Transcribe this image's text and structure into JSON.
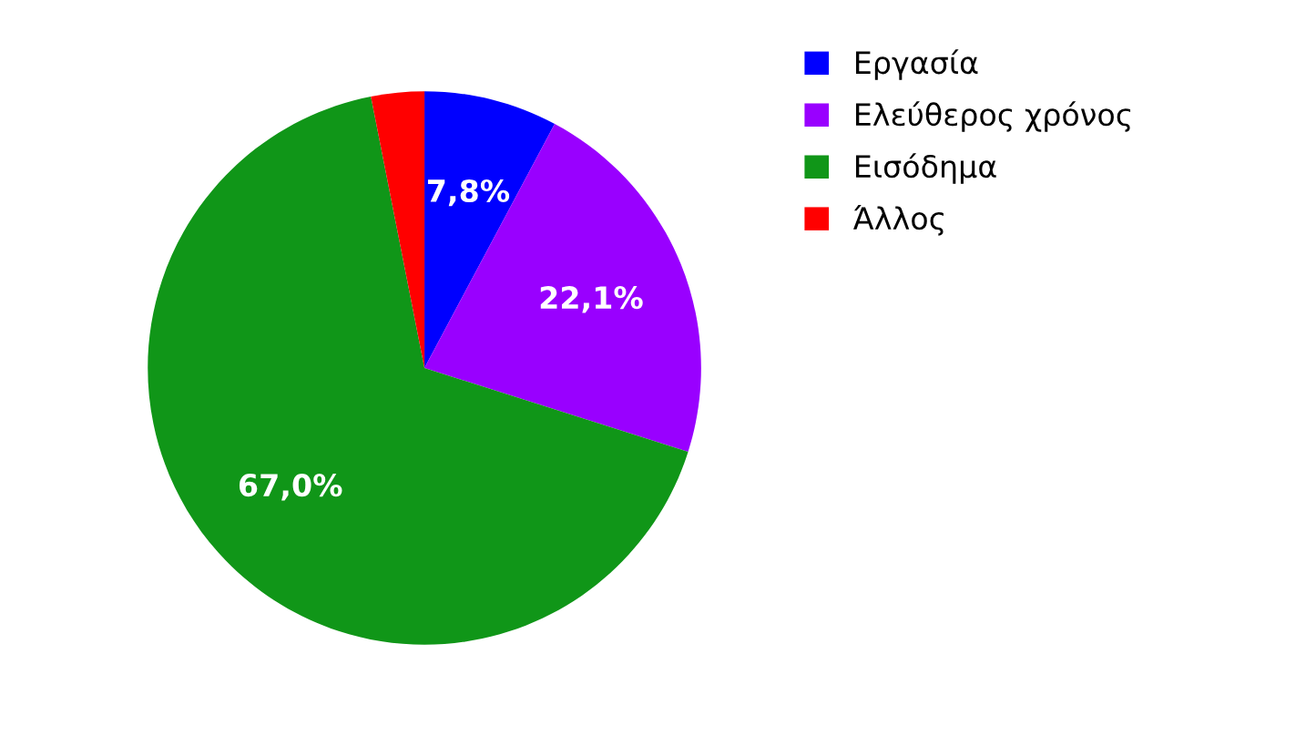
{
  "chart_data": {
    "type": "pie",
    "categories": [
      "Εργασία",
      "Ελεύθερος χρόνος",
      "Εισόδημα",
      "Άλλος"
    ],
    "values": [
      7.8,
      22.1,
      67.0,
      3.1
    ],
    "colors": [
      "#0000ff",
      "#9900ff",
      "#109618",
      "#ff0000"
    ],
    "value_labels": [
      "7,8%",
      "22,1%",
      "67,0%",
      null
    ],
    "legend": "right"
  }
}
